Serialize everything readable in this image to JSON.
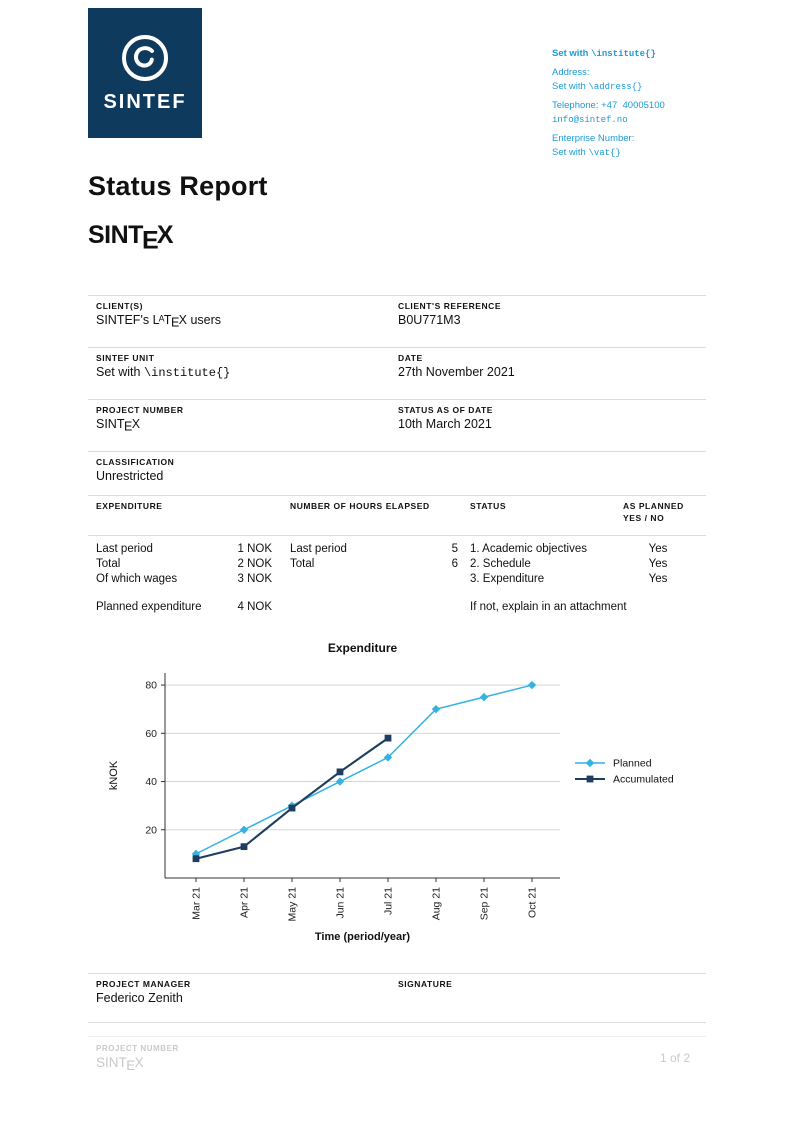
{
  "colors": {
    "navy": "#0e3a5e",
    "cyan": "#199cd8",
    "divider": "#dcdcdc",
    "footer_text": "#c9c9c9"
  },
  "brand": {
    "logo_text": "SINTEF"
  },
  "contact": {
    "institute_prefix": "Set with ",
    "institute_code": "\\institute{}",
    "address_label": "Address:",
    "address_prefix": "Set with ",
    "address_code": "\\address{}",
    "telephone": "Telephone: +47  40005100",
    "email": "info@sintef.no",
    "enterprise_label": "Enterprise Number:",
    "vat_prefix": "Set with ",
    "vat_code": "\\vat{}"
  },
  "titles": {
    "report_title": "Status Report",
    "sintex_pre": "SINT",
    "sintex_e": "E",
    "sintex_post": "X"
  },
  "latex_logo": {
    "l": "L",
    "a": "A",
    "t": "T",
    "e": "E",
    "x": "X"
  },
  "info": {
    "clients_label": "CLIENT(S)",
    "clients_value_prefix": "SINTEF's ",
    "clients_value_suffix": " users",
    "client_ref_label": "CLIENT'S REFERENCE",
    "client_ref_value": "B0U771M3",
    "unit_label": "SINTEF UNIT",
    "unit_value_prefix": "Set with ",
    "unit_value_code": "\\institute{}",
    "date_label": "DATE",
    "date_value": "27th November 2021",
    "project_number_label": "PROJECT NUMBER",
    "status_date_label": "STATUS AS OF DATE",
    "status_date_value": "10th March 2021",
    "classification_label": "CLASSIFICATION",
    "classification_value": "Unrestricted"
  },
  "exp_table": {
    "headers": {
      "expenditure": "EXPENDITURE",
      "hours": "NUMBER OF HOURS ELAPSED",
      "status": "STATUS",
      "as_planned_1": "AS PLANNED",
      "as_planned_2": "YES / NO"
    },
    "expenditure_rows": [
      {
        "label": "Last period",
        "value": "1 NOK"
      },
      {
        "label": "Total",
        "value": "2 NOK"
      },
      {
        "label": "Of which wages",
        "value": "3 NOK"
      }
    ],
    "planned_row": {
      "label": "Planned expenditure",
      "value": "4 NOK"
    },
    "hours_rows": [
      {
        "label": "Last period",
        "value": "5"
      },
      {
        "label": "Total",
        "value": "6"
      }
    ],
    "status_rows": [
      {
        "label": "1. Academic objectives",
        "as_planned": "Yes"
      },
      {
        "label": "2. Schedule",
        "as_planned": "Yes"
      },
      {
        "label": "3. Expenditure",
        "as_planned": "Yes"
      }
    ],
    "status_note": "If not, explain in an attachment"
  },
  "chart_data": {
    "type": "line",
    "title": "Expenditure",
    "xlabel": "Time (period/year)",
    "ylabel": "kNOK",
    "categories": [
      "Mar 21",
      "Apr 21",
      "May 21",
      "Jun 21",
      "Jul 21",
      "Aug 21",
      "Sep 21",
      "Oct 21"
    ],
    "ylim": [
      0,
      85
    ],
    "yticks": [
      20,
      40,
      60,
      80
    ],
    "grid": "horizontal",
    "legend_position": "right",
    "series": [
      {
        "name": "Planned",
        "marker": "diamond",
        "color": "#33b2e3",
        "width": 1.5,
        "values": [
          10,
          20,
          30,
          40,
          50,
          70,
          75,
          80
        ]
      },
      {
        "name": "Accumulated",
        "marker": "square",
        "color": "#1f3e5f",
        "width": 2.1,
        "values": [
          8,
          13,
          29,
          44,
          58
        ]
      }
    ]
  },
  "signature": {
    "manager_label": "PROJECT MANAGER",
    "manager_value": "Federico Zenith",
    "signature_label": "SIGNATURE"
  },
  "footer": {
    "project_number_label": "PROJECT NUMBER",
    "page_indicator": "1 of 2"
  }
}
